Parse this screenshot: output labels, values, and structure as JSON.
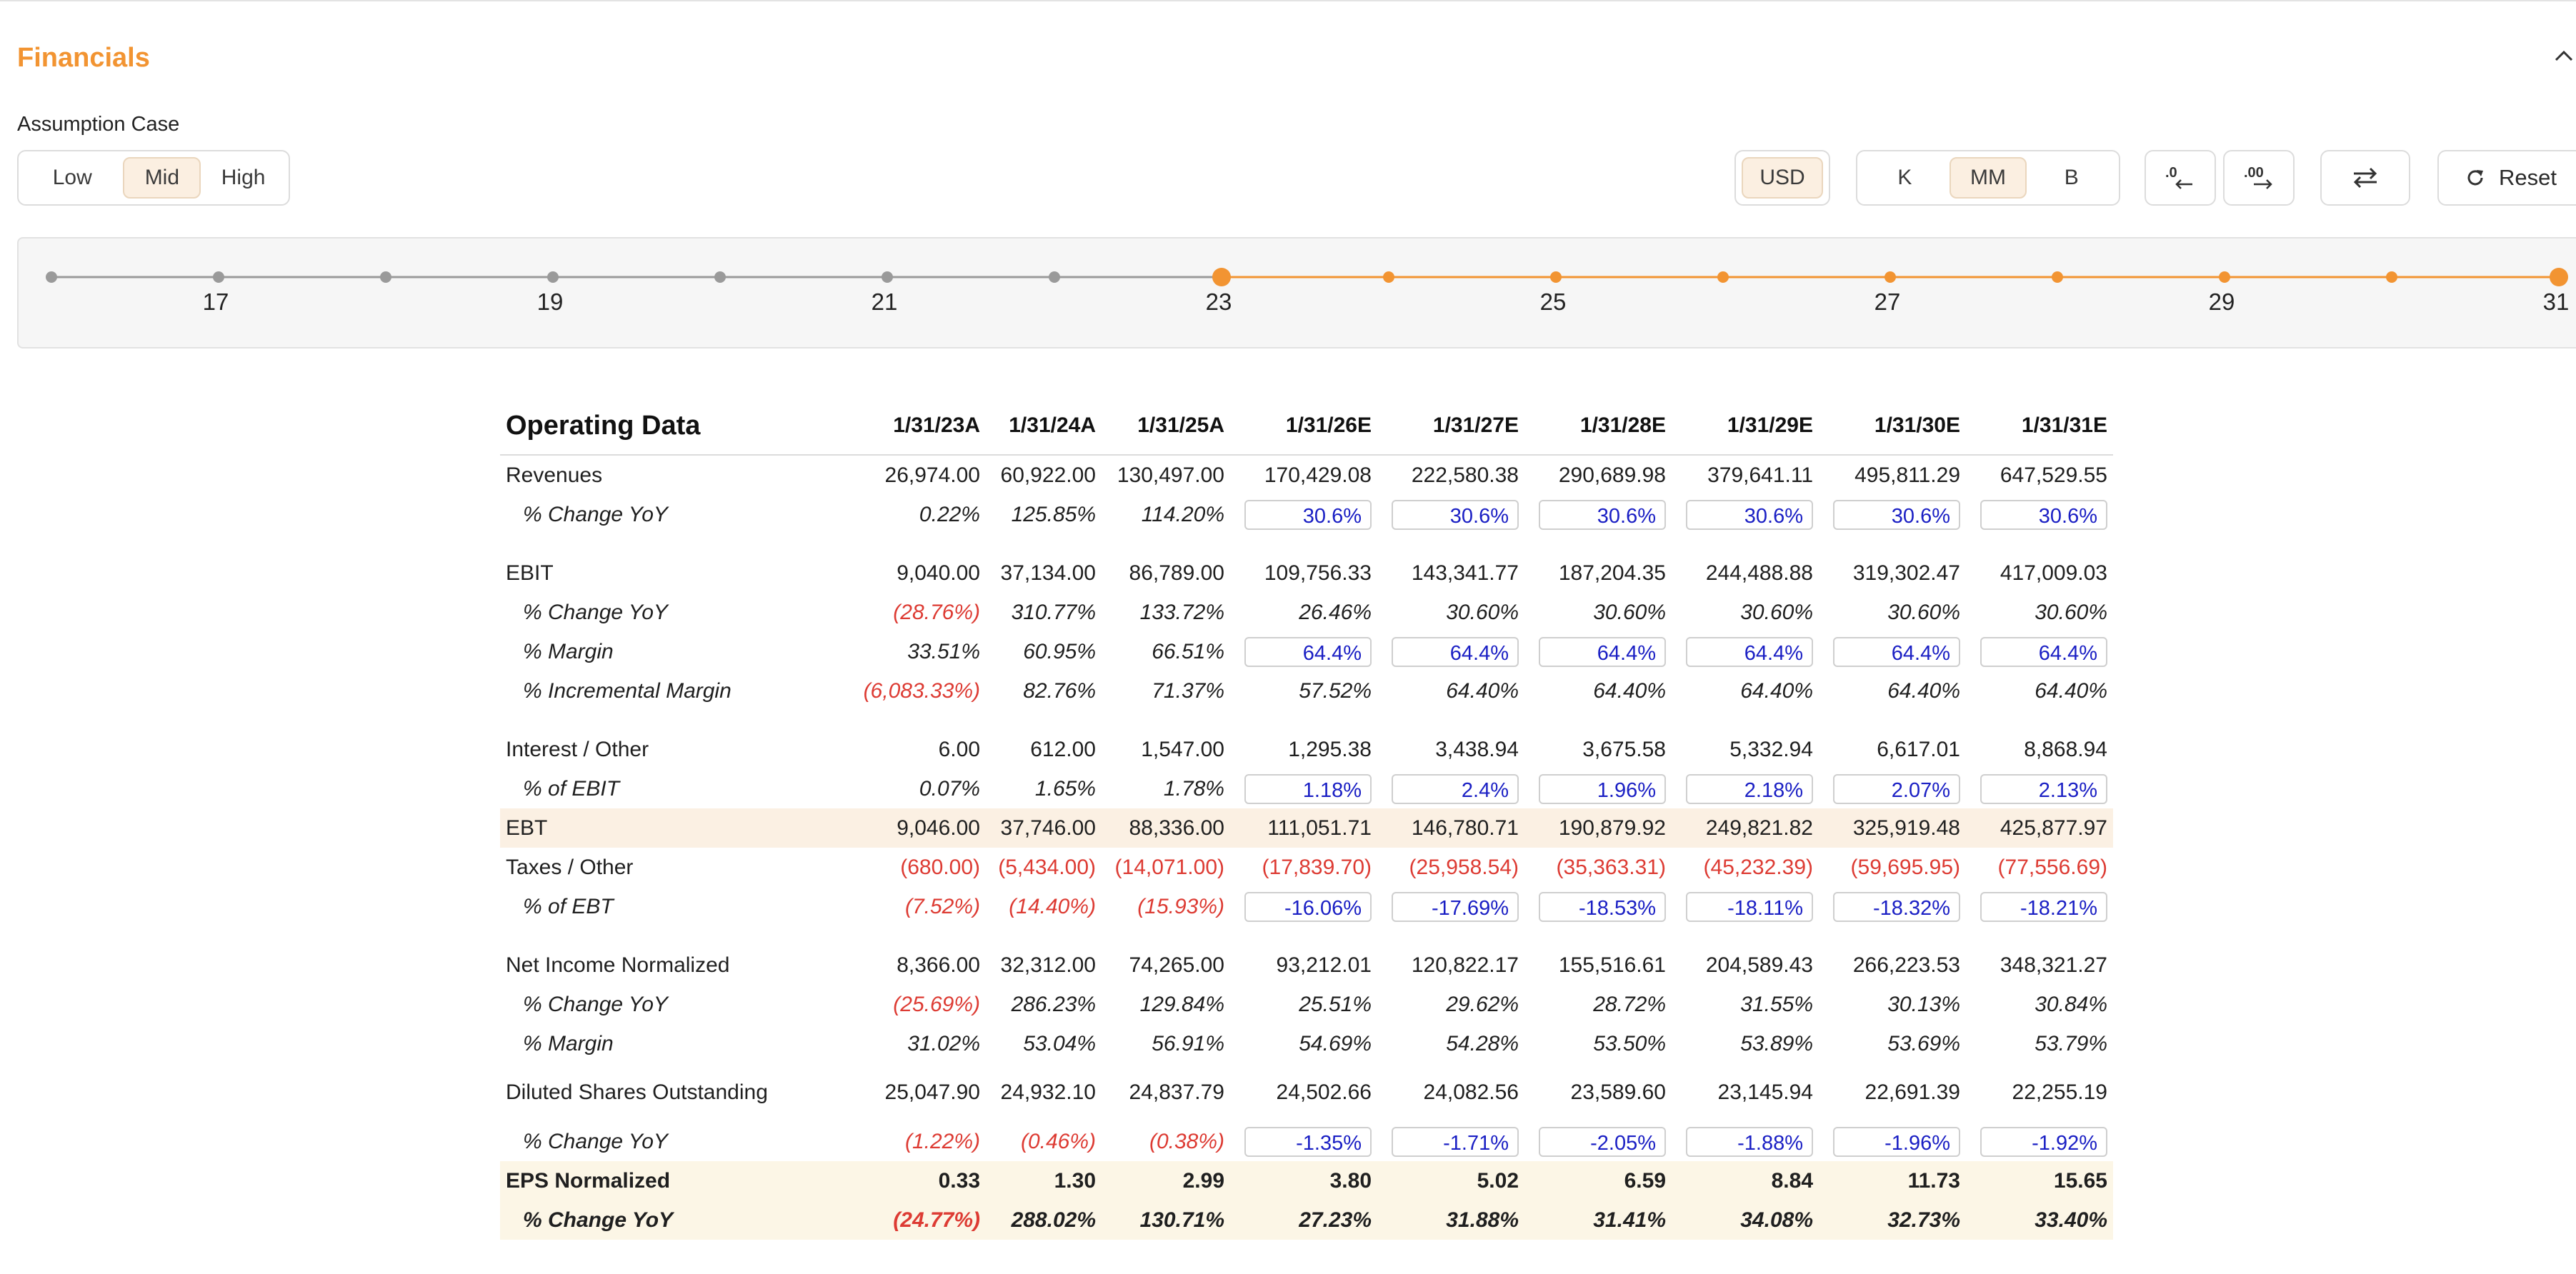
{
  "section": {
    "title": "Financials",
    "collapse_icon": "chevron-up-icon"
  },
  "assumption": {
    "label": "Assumption Case",
    "options": [
      "Low",
      "Mid",
      "High"
    ],
    "selected": "Mid"
  },
  "controls": {
    "currency": "USD",
    "scale_options": [
      "K",
      "MM",
      "B"
    ],
    "scale_selected": "MM",
    "decrease_decimals_icon": "decrease-decimals-icon",
    "increase_decimals_icon": "increase-decimals-icon",
    "swap_icon": "swap-arrows-icon",
    "reset_label": "Reset",
    "reset_icon": "refresh-icon"
  },
  "timeline": {
    "labels": [
      "17",
      "19",
      "21",
      "23",
      "25",
      "27",
      "29",
      "31"
    ],
    "colors": {
      "inactive": "#9a9a9a",
      "active": "#f29432"
    }
  },
  "table": {
    "title": "Operating Data",
    "columns": [
      "1/31/23A",
      "1/31/24A",
      "1/31/25A",
      "1/31/26E",
      "1/31/27E",
      "1/31/28E",
      "1/31/29E",
      "1/31/30E",
      "1/31/31E"
    ],
    "rows": [
      {
        "label": "Revenues",
        "values": [
          "26,974.00",
          "60,922.00",
          "130,497.00",
          "170,429.08",
          "222,580.38",
          "290,689.98",
          "379,641.11",
          "495,811.29",
          "647,529.55"
        ]
      },
      {
        "label": "% Change YoY",
        "sub": true,
        "values": [
          "0.22%",
          "125.85%",
          "114.20%",
          "30.6%",
          "30.6%",
          "30.6%",
          "30.6%",
          "30.6%",
          "30.6%"
        ],
        "inputs_from": 3
      },
      {
        "gap": true
      },
      {
        "label": "EBIT",
        "values": [
          "9,040.00",
          "37,134.00",
          "86,789.00",
          "109,756.33",
          "143,341.77",
          "187,204.35",
          "244,488.88",
          "319,302.47",
          "417,009.03"
        ]
      },
      {
        "label": "% Change YoY",
        "sub": true,
        "values": [
          "(28.76%)",
          "310.77%",
          "133.72%",
          "26.46%",
          "30.60%",
          "30.60%",
          "30.60%",
          "30.60%",
          "30.60%"
        ]
      },
      {
        "label": "% Margin",
        "sub": true,
        "values": [
          "33.51%",
          "60.95%",
          "66.51%",
          "64.4%",
          "64.4%",
          "64.4%",
          "64.4%",
          "64.4%",
          "64.4%"
        ],
        "inputs_from": 3
      },
      {
        "label": "% Incremental Margin",
        "sub": true,
        "values": [
          "(6,083.33%)",
          "82.76%",
          "71.37%",
          "57.52%",
          "64.40%",
          "64.40%",
          "64.40%",
          "64.40%",
          "64.40%"
        ]
      },
      {
        "gap": true
      },
      {
        "label": "Interest / Other",
        "values": [
          "6.00",
          "612.00",
          "1,547.00",
          "1,295.38",
          "3,438.94",
          "3,675.58",
          "5,332.94",
          "6,617.01",
          "8,868.94"
        ]
      },
      {
        "label": "% of EBIT",
        "sub": true,
        "values": [
          "0.07%",
          "1.65%",
          "1.78%",
          "1.18%",
          "2.4%",
          "1.96%",
          "2.18%",
          "2.07%",
          "2.13%"
        ],
        "inputs_from": 3
      },
      {
        "label": "EBT",
        "highlight": "ebt",
        "values": [
          "9,046.00",
          "37,746.00",
          "88,336.00",
          "111,051.71",
          "146,780.71",
          "190,879.92",
          "249,821.82",
          "325,919.48",
          "425,877.97"
        ]
      },
      {
        "label": "Taxes / Other",
        "values": [
          "(680.00)",
          "(5,434.00)",
          "(14,071.00)",
          "(17,839.70)",
          "(25,958.54)",
          "(35,363.31)",
          "(45,232.39)",
          "(59,695.95)",
          "(77,556.69)"
        ]
      },
      {
        "label": "% of EBT",
        "sub": true,
        "values": [
          "(7.52%)",
          "(14.40%)",
          "(15.93%)",
          "-16.06%",
          "-17.69%",
          "-18.53%",
          "-18.11%",
          "-18.32%",
          "-18.21%"
        ],
        "inputs_from": 3
      },
      {
        "gap": true
      },
      {
        "label": "Net Income Normalized",
        "values": [
          "8,366.00",
          "32,312.00",
          "74,265.00",
          "93,212.01",
          "120,822.17",
          "155,516.61",
          "204,589.43",
          "266,223.53",
          "348,321.27"
        ]
      },
      {
        "label": "% Change YoY",
        "sub": true,
        "values": [
          "(25.69%)",
          "286.23%",
          "129.84%",
          "25.51%",
          "29.62%",
          "28.72%",
          "31.55%",
          "30.13%",
          "30.84%"
        ]
      },
      {
        "label": "% Margin",
        "sub": true,
        "values": [
          "31.02%",
          "53.04%",
          "56.91%",
          "54.69%",
          "54.28%",
          "53.50%",
          "53.89%",
          "53.69%",
          "53.79%"
        ]
      },
      {
        "label": "Diluted Shares Outstanding",
        "tall": true,
        "values": [
          "25,047.90",
          "24,932.10",
          "24,837.79",
          "24,502.66",
          "24,082.56",
          "23,589.60",
          "23,145.94",
          "22,691.39",
          "22,255.19"
        ]
      },
      {
        "label": "% Change YoY",
        "sub": true,
        "values": [
          "(1.22%)",
          "(0.46%)",
          "(0.38%)",
          "-1.35%",
          "-1.71%",
          "-2.05%",
          "-1.88%",
          "-1.96%",
          "-1.92%"
        ],
        "inputs_from": 3
      },
      {
        "label": "EPS Normalized",
        "bold": true,
        "highlight": "eps",
        "values": [
          "0.33",
          "1.30",
          "2.99",
          "3.80",
          "5.02",
          "6.59",
          "8.84",
          "11.73",
          "15.65"
        ]
      },
      {
        "label": "% Change YoY",
        "sub": true,
        "bold": true,
        "highlight": "eps",
        "values": [
          "(24.77%)",
          "288.02%",
          "130.71%",
          "27.23%",
          "31.88%",
          "31.41%",
          "34.08%",
          "32.73%",
          "33.40%"
        ]
      }
    ]
  }
}
